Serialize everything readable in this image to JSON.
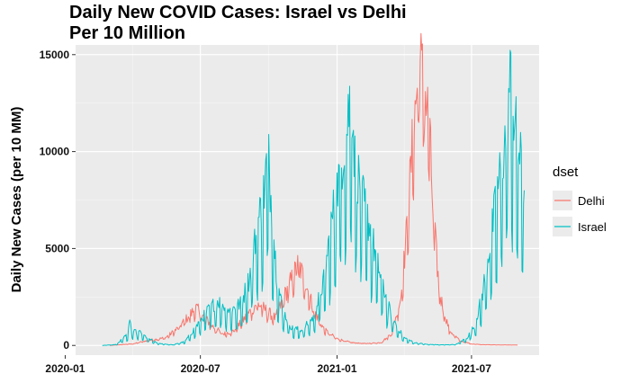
{
  "chart_data": {
    "type": "line",
    "title_line1": "Daily New COVID Cases: Israel vs Delhi",
    "title_line2": "Per 10 Million",
    "xlabel": "",
    "ylabel": "Daily New Cases (per 10 MM)",
    "xlim": [
      "2020-01-15",
      "2021-09-30"
    ],
    "ylim": [
      -500,
      15500
    ],
    "x_ticks": [
      {
        "date": "2020-01-01",
        "label": "2020-01"
      },
      {
        "date": "2020-07-01",
        "label": "2020-07"
      },
      {
        "date": "2021-01-01",
        "label": "2021-01"
      },
      {
        "date": "2021-07-01",
        "label": "2021-07"
      }
    ],
    "y_ticks": [
      0,
      5000,
      10000,
      15000
    ],
    "y_tick_labels": [
      "0",
      "5000",
      "10000",
      "15000"
    ],
    "grid": true,
    "background": "#ebebeb",
    "legend": {
      "title": "dset",
      "position": "right",
      "entries": [
        {
          "name": "Delhi",
          "color": "#F8766D"
        },
        {
          "name": "Israel",
          "color": "#00BFC4"
        }
      ]
    },
    "series": [
      {
        "name": "Delhi",
        "color": "#F8766D",
        "points": [
          [
            "2020-03-01",
            0
          ],
          [
            "2020-04-01",
            80
          ],
          [
            "2020-04-20",
            250
          ],
          [
            "2020-05-15",
            400
          ],
          [
            "2020-06-01",
            900
          ],
          [
            "2020-06-15",
            1500
          ],
          [
            "2020-06-25",
            1950
          ],
          [
            "2020-07-05",
            1500
          ],
          [
            "2020-07-20",
            900
          ],
          [
            "2020-08-01",
            600
          ],
          [
            "2020-08-15",
            750
          ],
          [
            "2020-09-01",
            1500
          ],
          [
            "2020-09-15",
            2200
          ],
          [
            "2020-09-25",
            1900
          ],
          [
            "2020-10-10",
            1400
          ],
          [
            "2020-10-25",
            2800
          ],
          [
            "2020-11-10",
            4200
          ],
          [
            "2020-11-20",
            3200
          ],
          [
            "2020-12-01",
            1800
          ],
          [
            "2020-12-15",
            800
          ],
          [
            "2021-01-01",
            350
          ],
          [
            "2021-01-20",
            150
          ],
          [
            "2021-02-10",
            100
          ],
          [
            "2021-03-01",
            150
          ],
          [
            "2021-03-15",
            600
          ],
          [
            "2021-03-28",
            2500
          ],
          [
            "2021-04-05",
            6000
          ],
          [
            "2021-04-12",
            10000
          ],
          [
            "2021-04-18",
            13000
          ],
          [
            "2021-04-22",
            14600
          ],
          [
            "2021-04-27",
            13500
          ],
          [
            "2021-05-02",
            12500
          ],
          [
            "2021-05-06",
            10500
          ],
          [
            "2021-05-10",
            7000
          ],
          [
            "2021-05-15",
            4500
          ],
          [
            "2021-05-20",
            2500
          ],
          [
            "2021-06-01",
            800
          ],
          [
            "2021-06-15",
            250
          ],
          [
            "2021-07-01",
            80
          ],
          [
            "2021-07-15",
            40
          ],
          [
            "2021-08-01",
            30
          ],
          [
            "2021-09-01",
            20
          ]
        ]
      },
      {
        "name": "Israel",
        "color": "#00BFC4",
        "points": [
          [
            "2020-02-20",
            0
          ],
          [
            "2020-03-10",
            50
          ],
          [
            "2020-03-25",
            600
          ],
          [
            "2020-03-28",
            1150
          ],
          [
            "2020-04-01",
            700
          ],
          [
            "2020-04-10",
            700
          ],
          [
            "2020-04-20",
            400
          ],
          [
            "2020-05-05",
            100
          ],
          [
            "2020-05-25",
            30
          ],
          [
            "2020-06-10",
            200
          ],
          [
            "2020-06-20",
            700
          ],
          [
            "2020-07-05",
            1500
          ],
          [
            "2020-07-15",
            2000
          ],
          [
            "2020-07-25",
            2300
          ],
          [
            "2020-08-10",
            1800
          ],
          [
            "2020-08-25",
            2200
          ],
          [
            "2020-09-05",
            3500
          ],
          [
            "2020-09-15",
            6000
          ],
          [
            "2020-09-25",
            8000
          ],
          [
            "2020-09-30",
            10200
          ],
          [
            "2020-10-05",
            7000
          ],
          [
            "2020-10-12",
            3500
          ],
          [
            "2020-10-20",
            1800
          ],
          [
            "2020-11-01",
            900
          ],
          [
            "2020-11-15",
            800
          ],
          [
            "2020-12-01",
            1500
          ],
          [
            "2020-12-15",
            3500
          ],
          [
            "2020-12-25",
            6500
          ],
          [
            "2021-01-05",
            9000
          ],
          [
            "2021-01-15",
            11500
          ],
          [
            "2021-01-20",
            13400
          ],
          [
            "2021-01-25",
            9500
          ],
          [
            "2021-02-05",
            7500
          ],
          [
            "2021-02-15",
            6000
          ],
          [
            "2021-02-20",
            5000
          ],
          [
            "2021-03-01",
            3500
          ],
          [
            "2021-03-15",
            1500
          ],
          [
            "2021-04-01",
            400
          ],
          [
            "2021-04-15",
            150
          ],
          [
            "2021-05-01",
            60
          ],
          [
            "2021-05-20",
            30
          ],
          [
            "2021-06-10",
            50
          ],
          [
            "2021-06-25",
            400
          ],
          [
            "2021-07-05",
            1000
          ],
          [
            "2021-07-15",
            2500
          ],
          [
            "2021-07-25",
            5000
          ],
          [
            "2021-08-05",
            8000
          ],
          [
            "2021-08-15",
            10500
          ],
          [
            "2021-08-22",
            13700
          ],
          [
            "2021-08-28",
            11500
          ],
          [
            "2021-09-03",
            10000
          ],
          [
            "2021-09-10",
            8000
          ]
        ]
      }
    ]
  }
}
